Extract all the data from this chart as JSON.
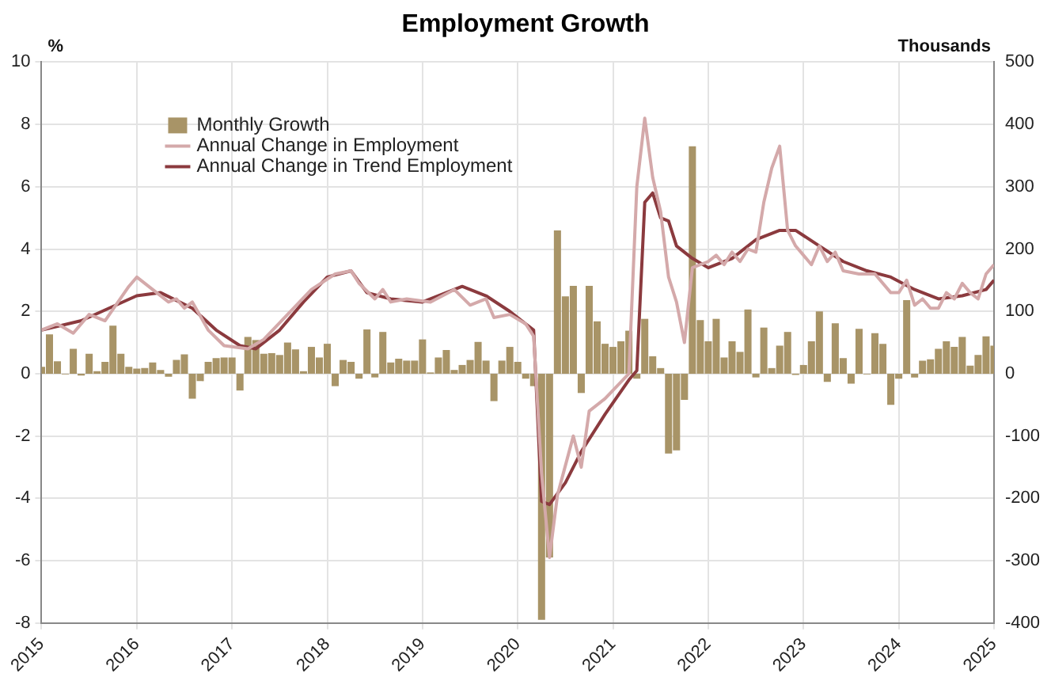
{
  "chart_data": {
    "type": "bar",
    "title": "Employment Growth",
    "ylabel": "%",
    "y2label": "Thousands",
    "x": [
      "2015-01",
      "2015-02",
      "2015-03",
      "2015-04",
      "2015-05",
      "2015-06",
      "2015-07",
      "2015-08",
      "2015-09",
      "2015-10",
      "2015-11",
      "2015-12",
      "2016-01",
      "2016-02",
      "2016-03",
      "2016-04",
      "2016-05",
      "2016-06",
      "2016-07",
      "2016-08",
      "2016-09",
      "2016-10",
      "2016-11",
      "2016-12",
      "2017-01",
      "2017-02",
      "2017-03",
      "2017-04",
      "2017-05",
      "2017-06",
      "2017-07",
      "2017-08",
      "2017-09",
      "2017-10",
      "2017-11",
      "2017-12",
      "2018-01",
      "2018-02",
      "2018-03",
      "2018-04",
      "2018-05",
      "2018-06",
      "2018-07",
      "2018-08",
      "2018-09",
      "2018-10",
      "2018-11",
      "2018-12",
      "2019-01",
      "2019-02",
      "2019-03",
      "2019-04",
      "2019-05",
      "2019-06",
      "2019-07",
      "2019-08",
      "2019-09",
      "2019-10",
      "2019-11",
      "2019-12",
      "2020-01",
      "2020-02",
      "2020-03",
      "2020-04",
      "2020-05",
      "2020-06",
      "2020-07",
      "2020-08",
      "2020-09",
      "2020-10",
      "2020-11",
      "2020-12",
      "2021-01",
      "2021-02",
      "2021-03",
      "2021-04",
      "2021-05",
      "2021-06",
      "2021-07",
      "2021-08",
      "2021-09",
      "2021-10",
      "2021-11",
      "2021-12",
      "2022-01",
      "2022-02",
      "2022-03",
      "2022-04",
      "2022-05",
      "2022-06",
      "2022-07",
      "2022-08",
      "2022-09",
      "2022-10",
      "2022-11",
      "2022-12",
      "2023-01",
      "2023-02",
      "2023-03",
      "2023-04",
      "2023-05",
      "2023-06",
      "2023-07",
      "2023-08",
      "2023-09",
      "2023-10",
      "2023-11",
      "2023-12",
      "2024-01",
      "2024-02",
      "2024-03",
      "2024-04",
      "2024-05",
      "2024-06",
      "2024-07",
      "2024-08",
      "2024-09",
      "2024-10",
      "2024-11",
      "2024-12",
      "2025-01"
    ],
    "series": [
      {
        "name": "Monthly Growth",
        "axis": "y2",
        "color": "#a89467",
        "values": [
          11,
          63,
          20,
          -1,
          40,
          -3,
          32,
          4,
          19,
          77,
          32,
          11,
          8,
          9,
          18,
          6,
          -5,
          22,
          31,
          -40,
          -12,
          19,
          25,
          26,
          26,
          -27,
          59,
          54,
          32,
          33,
          30,
          50,
          39,
          4,
          43,
          26,
          48,
          -20,
          22,
          19,
          -8,
          71,
          -6,
          67,
          18,
          24,
          21,
          21,
          55,
          2,
          26,
          38,
          6,
          14,
          22,
          51,
          21,
          -44,
          21,
          43,
          19,
          -8,
          -20,
          -395,
          -295,
          230,
          124,
          141,
          -31,
          141,
          84,
          48,
          43,
          52,
          69,
          -8,
          88,
          28,
          9,
          -128,
          -123,
          -42,
          365,
          86,
          52,
          88,
          26,
          52,
          35,
          103,
          -6,
          74,
          9,
          45,
          67,
          -2,
          14,
          52,
          100,
          -13,
          81,
          25,
          -16,
          72,
          -1,
          65,
          48,
          -50,
          -8,
          118,
          -6,
          21,
          23,
          40,
          52,
          43,
          59,
          13,
          30,
          60,
          45
        ]
      },
      {
        "name": "Annual Change in Employment",
        "type": "line",
        "axis": "y",
        "color": "#d4a9aa",
        "x": [
          "2015-01",
          "2015-03",
          "2015-05",
          "2015-07",
          "2015-09",
          "2015-12",
          "2016-01",
          "2016-03",
          "2016-05",
          "2016-06",
          "2016-07",
          "2016-08",
          "2016-10",
          "2016-12",
          "2017-03",
          "2017-05",
          "2017-08",
          "2017-11",
          "2018-02",
          "2018-04",
          "2018-05",
          "2018-07",
          "2018-08",
          "2018-09",
          "2018-11",
          "2019-02",
          "2019-05",
          "2019-07",
          "2019-09",
          "2019-10",
          "2019-12",
          "2020-02",
          "2020-03",
          "2020-04",
          "2020-05",
          "2020-06",
          "2020-08",
          "2020-09",
          "2020-10",
          "2020-12",
          "2021-03",
          "2021-04",
          "2021-05",
          "2021-06",
          "2021-07",
          "2021-08",
          "2021-09",
          "2021-10",
          "2021-11",
          "2022-01",
          "2022-02",
          "2022-03",
          "2022-04",
          "2022-05",
          "2022-06",
          "2022-07",
          "2022-08",
          "2022-09",
          "2022-10",
          "2022-11",
          "2022-12",
          "2023-01",
          "2023-02",
          "2023-03",
          "2023-04",
          "2023-05",
          "2023-06",
          "2023-08",
          "2023-10",
          "2023-12",
          "2024-01",
          "2024-02",
          "2024-03",
          "2024-04",
          "2024-05",
          "2024-06",
          "2024-07",
          "2024-08",
          "2024-09",
          "2024-10",
          "2024-11",
          "2024-12",
          "2025-01"
        ],
        "values": [
          1.4,
          1.6,
          1.3,
          1.9,
          1.7,
          2.8,
          3.1,
          2.7,
          2.3,
          2.4,
          2.1,
          2.3,
          1.4,
          0.9,
          0.8,
          1.1,
          1.9,
          2.7,
          3.2,
          3.3,
          2.9,
          2.4,
          2.7,
          2.3,
          2.4,
          2.3,
          2.7,
          2.2,
          2.4,
          1.8,
          1.9,
          1.6,
          1.2,
          -3.2,
          -5.9,
          -3.9,
          -2.0,
          -3.0,
          -1.2,
          -0.8,
          0.0,
          6.0,
          8.2,
          6.3,
          5.2,
          3.1,
          2.3,
          1.0,
          3.4,
          3.6,
          3.8,
          3.5,
          3.9,
          3.6,
          4.0,
          3.9,
          5.5,
          6.6,
          7.3,
          4.6,
          4.1,
          3.8,
          3.5,
          4.1,
          3.6,
          3.9,
          3.3,
          3.2,
          3.2,
          2.6,
          2.6,
          3.0,
          2.2,
          2.4,
          2.1,
          2.1,
          2.6,
          2.4,
          2.9,
          2.6,
          2.4,
          3.2,
          3.5
        ]
      },
      {
        "name": "Annual Change in Trend Employment",
        "type": "line",
        "axis": "y",
        "color": "#8b3a3e",
        "x": [
          "2015-01",
          "2015-06",
          "2016-01",
          "2016-04",
          "2016-08",
          "2016-11",
          "2017-02",
          "2017-04",
          "2017-07",
          "2017-10",
          "2018-01",
          "2018-04",
          "2018-06",
          "2018-09",
          "2019-01",
          "2019-06",
          "2019-09",
          "2019-12",
          "2020-02",
          "2020-03",
          "2020-04",
          "2020-05",
          "2020-07",
          "2020-09",
          "2020-12",
          "2021-03",
          "2021-04",
          "2021-05",
          "2021-06",
          "2021-07",
          "2021-08",
          "2021-09",
          "2021-11",
          "2022-01",
          "2022-04",
          "2022-07",
          "2022-10",
          "2022-12",
          "2023-03",
          "2023-06",
          "2023-09",
          "2023-12",
          "2024-03",
          "2024-06",
          "2024-09",
          "2024-12",
          "2025-01"
        ],
        "values": [
          1.4,
          1.7,
          2.5,
          2.6,
          2.1,
          1.4,
          0.9,
          0.8,
          1.4,
          2.3,
          3.1,
          3.3,
          2.6,
          2.4,
          2.3,
          2.8,
          2.5,
          2.0,
          1.6,
          1.4,
          -4.1,
          -4.2,
          -3.5,
          -2.5,
          -1.3,
          -0.2,
          0.1,
          5.5,
          5.8,
          5.0,
          4.9,
          4.1,
          3.7,
          3.4,
          3.7,
          4.3,
          4.6,
          4.6,
          4.1,
          3.6,
          3.3,
          3.1,
          2.7,
          2.4,
          2.5,
          2.7,
          3.0
        ]
      }
    ],
    "xlim": [
      "2015",
      "2025-01"
    ],
    "xticks": [
      "2015",
      "2016",
      "2017",
      "2018",
      "2019",
      "2020",
      "2021",
      "2022",
      "2023",
      "2024",
      "2025"
    ],
    "ylim": [
      -8,
      10
    ],
    "yticks": [
      -8,
      -6,
      -4,
      -2,
      0,
      2,
      4,
      6,
      8,
      10
    ],
    "y2lim": [
      -400,
      500
    ],
    "y2ticks": [
      -400,
      -300,
      -200,
      -100,
      0,
      100,
      200,
      300,
      400,
      500
    ],
    "grid": true,
    "legend": "top left",
    "marker": "none",
    "line_style": "solid"
  }
}
